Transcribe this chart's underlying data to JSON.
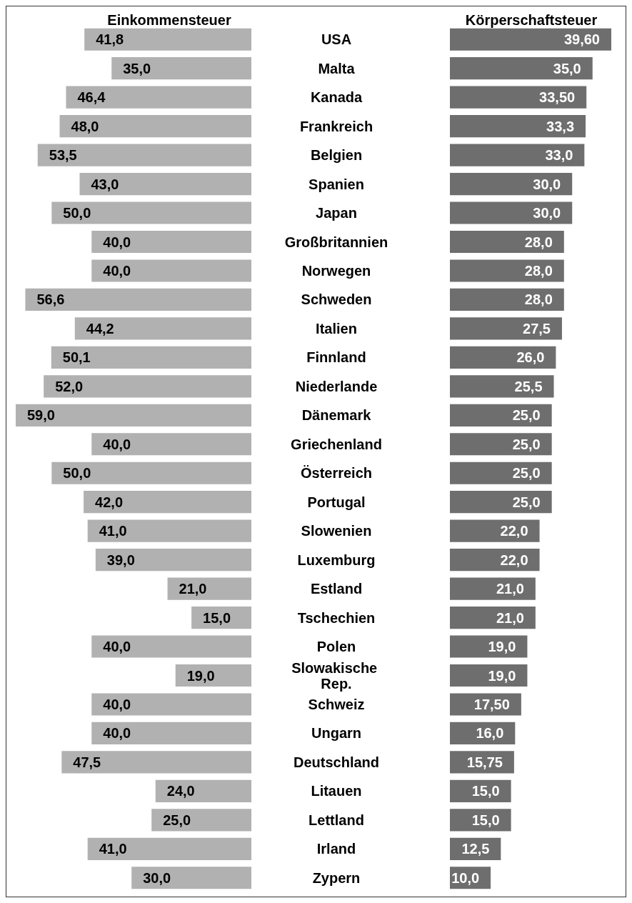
{
  "chart_data": [
    {
      "type": "bar",
      "orientation": "horizontal",
      "title": "Einkommensteuer",
      "categories": [
        "USA",
        "Malta",
        "Kanada",
        "Frankreich",
        "Belgien",
        "Spanien",
        "Japan",
        "Großbritannien",
        "Norwegen",
        "Schweden",
        "Italien",
        "Finnland",
        "Niederlande",
        "Dänemark",
        "Griechenland",
        "Österreich",
        "Portugal",
        "Slowenien",
        "Luxemburg",
        "Estland",
        "Tschechien",
        "Polen",
        "Slowakische Rep.",
        "Schweiz",
        "Ungarn",
        "Deutschland",
        "Litauen",
        "Lettland",
        "Irland",
        "Zypern"
      ],
      "values": [
        41.8,
        35.0,
        46.4,
        48.0,
        53.5,
        43.0,
        50.0,
        40.0,
        40.0,
        56.6,
        44.2,
        50.1,
        52.0,
        59.0,
        40.0,
        50.0,
        42.0,
        41.0,
        39.0,
        21.0,
        15.0,
        40.0,
        19.0,
        40.0,
        40.0,
        47.5,
        24.0,
        25.0,
        41.0,
        30.0
      ],
      "value_labels": [
        "41,8",
        "35,0",
        "46,4",
        "48,0",
        "53,5",
        "43,0",
        "50,0",
        "40,0",
        "40,0",
        "56,6",
        "44,2",
        "50,1",
        "52,0",
        "59,0",
        "40,0",
        "50,0",
        "42,0",
        "41,0",
        "39,0",
        "21,0",
        "15,0",
        "40,0",
        "19,0",
        "40,0",
        "40,0",
        "47,5",
        "24,0",
        "25,0",
        "41,0",
        "30,0"
      ],
      "color": "#b0b1b0",
      "xlim": [
        59.0,
        0
      ],
      "tick_labels": "y"
    },
    {
      "type": "bar",
      "orientation": "horizontal",
      "title": "Körperschaftsteuer",
      "categories": [
        "USA",
        "Malta",
        "Kanada",
        "Frankreich",
        "Belgien",
        "Spanien",
        "Japan",
        "Großbritannien",
        "Norwegen",
        "Schweden",
        "Italien",
        "Finnland",
        "Niederlande",
        "Dänemark",
        "Griechenland",
        "Österreich",
        "Portugal",
        "Slowenien",
        "Luxemburg",
        "Estland",
        "Tschechien",
        "Polen",
        "Slowakische Rep.",
        "Schweiz",
        "Ungarn",
        "Deutschland",
        "Litauen",
        "Lettland",
        "Irland",
        "Zypern"
      ],
      "values": [
        39.6,
        35.0,
        33.5,
        33.3,
        33.0,
        30.0,
        30.0,
        28.0,
        28.0,
        28.0,
        27.5,
        26.0,
        25.5,
        25.0,
        25.0,
        25.0,
        25.0,
        22.0,
        22.0,
        21.0,
        21.0,
        19.0,
        19.0,
        17.5,
        16.0,
        15.75,
        15.0,
        15.0,
        12.5,
        10.0
      ],
      "value_labels": [
        "39,60",
        "35,0",
        "33,50",
        "33,3",
        "33,0",
        "30,0",
        "30,0",
        "28,0",
        "28,0",
        "28,0",
        "27,5",
        "26,0",
        "25,5",
        "25,0",
        "25,0",
        "25,0",
        "25,0",
        "22,0",
        "22,0",
        "21,0",
        "21,0",
        "19,0",
        "19,0",
        "17,50",
        "16,0",
        "15,75",
        "15,0",
        "15,0",
        "12,5",
        "10,0"
      ],
      "color": "#6e6e6e",
      "xlim": [
        0,
        39.6
      ],
      "tick_labels": false
    }
  ]
}
